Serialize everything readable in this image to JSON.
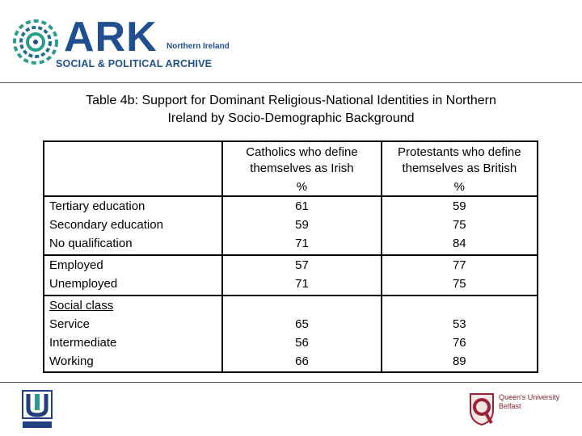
{
  "header": {
    "ark": "ARK",
    "ark_region": "Northern Ireland",
    "ark_subtitle": "SOCIAL & POLITICAL ARCHIVE"
  },
  "title_line1": "Table 4b: Support for Dominant Religious-National Identities in Northern",
  "title_line2": "Ireland by Socio-Demographic Background",
  "table": {
    "col1_line1": "Catholics who define",
    "col1_line2": "themselves as Irish",
    "col1_unit": "%",
    "col2_line1": "Protestants who define",
    "col2_line2": "themselves as British",
    "col2_unit": "%",
    "education": {
      "labels": [
        "Tertiary education",
        "Secondary education",
        "No qualification"
      ],
      "catholic": [
        "61",
        "59",
        "71"
      ],
      "protestant": [
        "59",
        "75",
        "84"
      ]
    },
    "employment": {
      "labels": [
        "Employed",
        "Unemployed"
      ],
      "catholic": [
        "57",
        "71"
      ],
      "protestant": [
        "77",
        "75"
      ]
    },
    "social_class": {
      "heading": "Social class",
      "labels": [
        "Service",
        "Intermediate",
        "Working"
      ],
      "catholic": [
        "65",
        "56",
        "66"
      ],
      "protestant": [
        "53",
        "76",
        "89"
      ]
    }
  },
  "footer": {
    "qub_line1": "Queen's University",
    "qub_line2": "Belfast"
  }
}
